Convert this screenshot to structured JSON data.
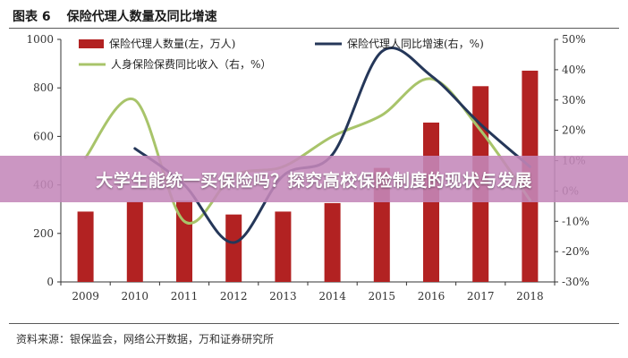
{
  "figure": {
    "label": "图表 6",
    "title": "保险代理人数量及同比增速",
    "source": "资料来源：银保监会，网络公开数据，万和证券研究所"
  },
  "banner": {
    "text": "大学生能统一买保险吗？探究高校保险制度的现状与发展"
  },
  "colors": {
    "bar": "#b22222",
    "agent_growth": "#253759",
    "premium_growth": "#a8c46a",
    "banner_bg": "#c488ba"
  },
  "chart_data": {
    "type": "bar",
    "categories": [
      "2009",
      "2010",
      "2011",
      "2012",
      "2013",
      "2014",
      "2015",
      "2016",
      "2017",
      "2018"
    ],
    "y_left": {
      "ylim": [
        0,
        1000
      ],
      "ticks": [
        0,
        200,
        400,
        600,
        800,
        1000
      ]
    },
    "y_right": {
      "ylim": [
        -30,
        50
      ],
      "ticks": [
        -30,
        -20,
        -10,
        0,
        10,
        20,
        30,
        40,
        50
      ],
      "tick_labels": [
        "-30%",
        "-20%",
        "-10%",
        "0%",
        "10%",
        "20%",
        "30%",
        "40%",
        "50%"
      ]
    },
    "legend_position": "top",
    "series": [
      {
        "name": "保险代理人数量(左，万人)",
        "kind": "bar",
        "axis": "left",
        "values": [
          290,
          330,
          335,
          278,
          290,
          325,
          470,
          657,
          807,
          871
        ]
      },
      {
        "name": "保险代理人同比增速(右，%)",
        "kind": "line",
        "axis": "right",
        "values": [
          null,
          14,
          2,
          -17,
          5,
          12,
          46,
          38,
          22,
          8
        ]
      },
      {
        "name": "人身保险保费同比收入（右，%）",
        "kind": "line",
        "axis": "right",
        "values": [
          11,
          30,
          -10,
          5,
          8,
          18,
          25,
          37,
          20,
          -3
        ]
      }
    ]
  }
}
